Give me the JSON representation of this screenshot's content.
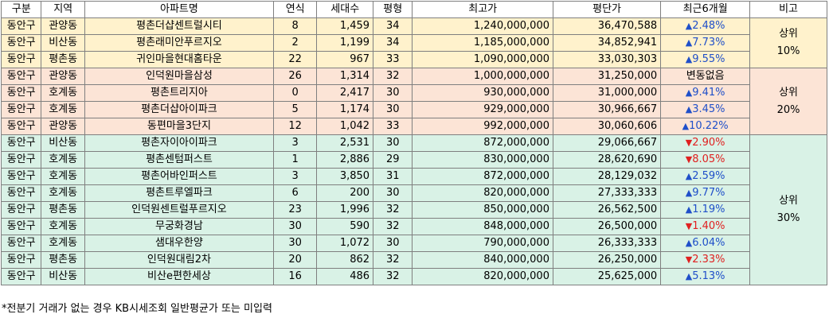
{
  "colors": {
    "group1": "#fff2cc",
    "group2": "#fce4d6",
    "group3": "#d9f2e6",
    "up": "#1f4fc9",
    "down": "#e02020"
  },
  "headers": [
    "구분",
    "지역",
    "아파트명",
    "연식",
    "세대수",
    "평형",
    "최고가",
    "평단가",
    "최근6개월",
    "비고"
  ],
  "rows": [
    {
      "gu": "동안구",
      "dong": "관양동",
      "name": "평촌더샵센트럴시티",
      "age": "8",
      "households": "1,459",
      "pyeong": "34",
      "max_price": "1,240,000,000",
      "per_pyeong": "36,470,588",
      "change": "2.48%",
      "dir": "up",
      "group": 1
    },
    {
      "gu": "동안구",
      "dong": "비산동",
      "name": "평촌래미안푸르지오",
      "age": "2",
      "households": "1,199",
      "pyeong": "34",
      "max_price": "1,185,000,000",
      "per_pyeong": "34,852,941",
      "change": "7.73%",
      "dir": "up",
      "group": 1
    },
    {
      "gu": "동안구",
      "dong": "평촌동",
      "name": "귀인마을현대홈타운",
      "age": "22",
      "households": "967",
      "pyeong": "33",
      "max_price": "1,090,000,000",
      "per_pyeong": "33,030,303",
      "change": "9.55%",
      "dir": "up",
      "group": 1
    },
    {
      "gu": "동안구",
      "dong": "관양동",
      "name": "인덕원마을삼성",
      "age": "26",
      "households": "1,314",
      "pyeong": "32",
      "max_price": "1,000,000,000",
      "per_pyeong": "31,250,000",
      "change": "변동없음",
      "dir": "flat",
      "group": 2
    },
    {
      "gu": "동안구",
      "dong": "호계동",
      "name": "평촌트리지아",
      "age": "0",
      "households": "2,417",
      "pyeong": "30",
      "max_price": "930,000,000",
      "per_pyeong": "31,000,000",
      "change": "9.41%",
      "dir": "up",
      "group": 2
    },
    {
      "gu": "동안구",
      "dong": "호계동",
      "name": "평촌더샵아이파크",
      "age": "5",
      "households": "1,174",
      "pyeong": "30",
      "max_price": "929,000,000",
      "per_pyeong": "30,966,667",
      "change": "3.45%",
      "dir": "up",
      "group": 2
    },
    {
      "gu": "동안구",
      "dong": "관양동",
      "name": "동편마을3단지",
      "age": "12",
      "households": "1,042",
      "pyeong": "33",
      "max_price": "992,000,000",
      "per_pyeong": "30,060,606",
      "change": "10.22%",
      "dir": "up",
      "group": 2
    },
    {
      "gu": "동안구",
      "dong": "비산동",
      "name": "평촌자이아이파크",
      "age": "3",
      "households": "2,531",
      "pyeong": "30",
      "max_price": "872,000,000",
      "per_pyeong": "29,066,667",
      "change": "2.90%",
      "dir": "down",
      "group": 3
    },
    {
      "gu": "동안구",
      "dong": "호계동",
      "name": "평촌센텀퍼스트",
      "age": "1",
      "households": "2,886",
      "pyeong": "29",
      "max_price": "830,000,000",
      "per_pyeong": "28,620,690",
      "change": "8.05%",
      "dir": "down",
      "group": 3
    },
    {
      "gu": "동안구",
      "dong": "호계동",
      "name": "평촌어바인퍼스트",
      "age": "3",
      "households": "3,850",
      "pyeong": "31",
      "max_price": "872,000,000",
      "per_pyeong": "28,129,032",
      "change": "2.59%",
      "dir": "up",
      "group": 3
    },
    {
      "gu": "동안구",
      "dong": "호계동",
      "name": "평촌트루엘파크",
      "age": "6",
      "households": "200",
      "pyeong": "30",
      "max_price": "820,000,000",
      "per_pyeong": "27,333,333",
      "change": "9.77%",
      "dir": "up",
      "group": 3
    },
    {
      "gu": "동안구",
      "dong": "평촌동",
      "name": "인덕원센트럴푸르지오",
      "age": "23",
      "households": "1,996",
      "pyeong": "32",
      "max_price": "850,000,000",
      "per_pyeong": "26,562,500",
      "change": "1.19%",
      "dir": "up",
      "group": 3
    },
    {
      "gu": "동안구",
      "dong": "호계동",
      "name": "무궁화경남",
      "age": "30",
      "households": "590",
      "pyeong": "32",
      "max_price": "848,000,000",
      "per_pyeong": "26,500,000",
      "change": "1.40%",
      "dir": "down",
      "group": 3
    },
    {
      "gu": "동안구",
      "dong": "호계동",
      "name": "샘대우한양",
      "age": "30",
      "households": "1,072",
      "pyeong": "30",
      "max_price": "790,000,000",
      "per_pyeong": "26,333,333",
      "change": "6.04%",
      "dir": "up",
      "group": 3
    },
    {
      "gu": "동안구",
      "dong": "평촌동",
      "name": "인덕원대림2차",
      "age": "20",
      "households": "862",
      "pyeong": "32",
      "max_price": "840,000,000",
      "per_pyeong": "26,250,000",
      "change": "2.33%",
      "dir": "down",
      "group": 3
    },
    {
      "gu": "동안구",
      "dong": "비산동",
      "name": "비산e편한세상",
      "age": "16",
      "households": "486",
      "pyeong": "32",
      "max_price": "820,000,000",
      "per_pyeong": "25,625,000",
      "change": "5.13%",
      "dir": "up",
      "group": 3
    }
  ],
  "notes": {
    "1": {
      "line1": "상위",
      "line2": "10%"
    },
    "2": {
      "line1": "상위",
      "line2": "20%"
    },
    "3": {
      "line1": "상위",
      "line2": "30%"
    }
  },
  "footnote": "*전분기 거래가 없는 경우 KB시세조회 일반평균가 또는 미입력"
}
